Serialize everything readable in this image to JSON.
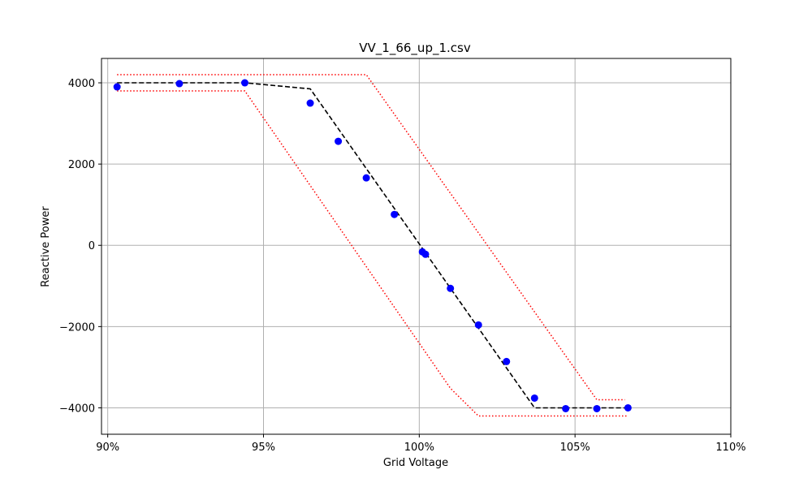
{
  "chart_data": {
    "type": "line",
    "title": "VV_1_66_up_1.csv",
    "xlabel": "Grid Voltage",
    "ylabel": "Reactive Power",
    "xlim": [
      0.898,
      1.1
    ],
    "ylim": [
      -4650,
      4600
    ],
    "xticks": [
      0.9,
      0.95,
      1.0,
      1.05,
      1.1
    ],
    "xtick_labels": [
      "90%",
      "95%",
      "100%",
      "105%",
      "110%"
    ],
    "yticks": [
      -4000,
      -2000,
      0,
      2000,
      4000
    ],
    "ytick_labels": [
      "−4000",
      "−2000",
      "0",
      "2000",
      "4000"
    ],
    "grid": true,
    "colors": {
      "target": "#000000",
      "bounds": "#ff0000",
      "measured": "#0000ff"
    },
    "series": [
      {
        "style": "dashed",
        "color": "#000000",
        "x": [
          0.903,
          0.944,
          0.965,
          1.037,
          1.067
        ],
        "y": [
          4000,
          4000,
          3850,
          -4000,
          -4000
        ]
      },
      {
        "style": "dotted",
        "color": "#ff0000",
        "x": [
          0.903,
          0.983,
          1.057,
          1.066
        ],
        "y": [
          4200,
          4200,
          -3800,
          -3800
        ]
      },
      {
        "style": "dotted",
        "color": "#ff0000",
        "x": [
          0.903,
          0.944,
          1.01,
          1.019,
          1.067
        ],
        "y": [
          3800,
          3800,
          -3520,
          -4200,
          -4200
        ]
      },
      {
        "style": "markers",
        "color": "#0000ff",
        "x": [
          0.903,
          0.923,
          0.944,
          0.965,
          0.974,
          0.983,
          0.992,
          1.001,
          1.002,
          1.01,
          1.019,
          1.028,
          1.037,
          1.047,
          1.057,
          1.067
        ],
        "y": [
          3900,
          3980,
          4000,
          3500,
          2560,
          1660,
          760,
          -160,
          -220,
          -1060,
          -1960,
          -2860,
          -3760,
          -4020,
          -4020,
          -4000
        ]
      }
    ]
  }
}
